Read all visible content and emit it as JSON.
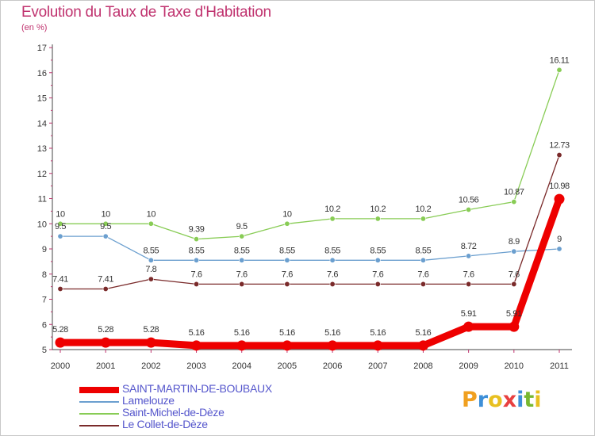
{
  "title": "Evolution du Taux de Taxe d'Habitation",
  "unit_label": "(en %)",
  "logo": {
    "letters": [
      "P",
      "r",
      "o",
      "x",
      "i",
      "t",
      "i"
    ],
    "colors": [
      "#f0a020",
      "#3d8fd8",
      "#e8c020",
      "#e84040",
      "#3d8fd8",
      "#78b830",
      "#e8c020"
    ]
  },
  "chart_data": {
    "type": "line",
    "title": "Evolution du Taux de Taxe d'Habitation",
    "ylabel": "(en %)",
    "xlabel": "",
    "ylim": [
      5,
      17
    ],
    "y_ticks": [
      5,
      6,
      7,
      8,
      9,
      10,
      11,
      12,
      13,
      14,
      15,
      16,
      17
    ],
    "grid": false,
    "legend_position": "bottom-left",
    "x": [
      "2000",
      "2001",
      "2002",
      "2003",
      "2004",
      "2005",
      "2006",
      "2007",
      "2008",
      "2009",
      "2010",
      "2011"
    ],
    "series": [
      {
        "name": "SAINT-MARTIN-DE-BOUBAUX",
        "color": "#ee0000",
        "thick": true,
        "values": [
          5.28,
          5.28,
          5.28,
          5.16,
          5.16,
          5.16,
          5.16,
          5.16,
          5.16,
          5.91,
          5.91,
          10.98
        ],
        "labels": [
          "5.28",
          "5.28",
          "5.28",
          "5.16",
          "5.16",
          "5.16",
          "5.16",
          "5.16",
          "5.16",
          "5.91",
          "5.91",
          "10.98"
        ]
      },
      {
        "name": "Lamelouze",
        "color": "#6b9fcf",
        "thick": false,
        "values": [
          9.5,
          9.5,
          8.55,
          8.55,
          8.55,
          8.55,
          8.55,
          8.55,
          8.55,
          8.72,
          8.9,
          9
        ],
        "labels": [
          "9.5",
          "9.5",
          "8.55",
          "8.55",
          "8.55",
          "8.55",
          "8.55",
          "8.55",
          "8.55",
          "8.72",
          "8.9",
          "9"
        ]
      },
      {
        "name": "Saint-Michel-de-Dèze",
        "color": "#88cc55",
        "thick": false,
        "values": [
          10,
          10,
          10,
          9.39,
          9.5,
          10,
          10.2,
          10.2,
          10.2,
          10.56,
          10.87,
          16.11
        ],
        "labels": [
          "10",
          "10",
          "10",
          "9.39",
          "9.5",
          "10",
          "10.2",
          "10.2",
          "10.2",
          "10.56",
          "10.87",
          "16.11"
        ]
      },
      {
        "name": "Le Collet-de-Dèze",
        "color": "#7a2a2a",
        "thick": false,
        "values": [
          7.41,
          7.41,
          7.8,
          7.6,
          7.6,
          7.6,
          7.6,
          7.6,
          7.6,
          7.6,
          7.6,
          12.73
        ],
        "labels": [
          "7.41",
          "7.41",
          "7.8",
          "7.6",
          "7.6",
          "7.6",
          "7.6",
          "7.6",
          "7.6",
          "7.6",
          "7.6",
          "12.73"
        ]
      }
    ]
  }
}
